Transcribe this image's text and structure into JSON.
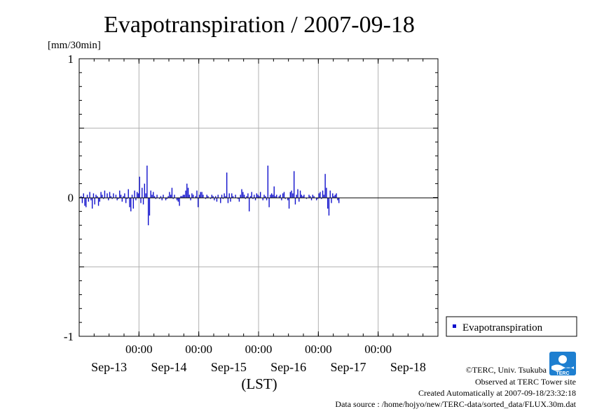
{
  "chart_data": {
    "type": "bar",
    "title": "Evapotranspiration / 2007-09-18",
    "ylabel": "[mm/30min]",
    "xlabel": "(LST)",
    "ylim": [
      -1,
      1
    ],
    "yticks": [
      1,
      0,
      -1
    ],
    "xlim": [
      0,
      6
    ],
    "time_tick_positions": [
      1,
      2,
      3,
      4,
      5
    ],
    "time_tick_label": "00:00",
    "date_tick_positions": [
      0.5,
      1.5,
      2.5,
      3.5,
      4.5,
      5.5
    ],
    "date_labels": [
      "Sep-13",
      "Sep-14",
      "Sep-15",
      "Sep-16",
      "Sep-17",
      "Sep-18"
    ],
    "grid": true,
    "legend_position": "right-bottom",
    "series": [
      {
        "name": "Evapotranspiration",
        "color": "#1010cc",
        "interval_days": 0.0208333,
        "values": [
          0.0,
          0.01,
          -0.04,
          0.03,
          -0.06,
          -0.07,
          0.02,
          -0.03,
          0.04,
          -0.02,
          -0.08,
          0.03,
          -0.05,
          0.02,
          0.01,
          -0.06,
          -0.03,
          0.04,
          0.02,
          -0.01,
          0.05,
          0.0,
          0.03,
          -0.02,
          0.04,
          0.01,
          -0.01,
          0.03,
          0.0,
          0.02,
          -0.02,
          -0.01,
          0.05,
          0.02,
          -0.03,
          0.01,
          0.03,
          -0.04,
          -0.01,
          0.06,
          -0.07,
          -0.1,
          0.02,
          -0.08,
          0.05,
          -0.02,
          0.04,
          0.03,
          0.15,
          -0.04,
          0.07,
          -0.05,
          0.1,
          0.03,
          0.23,
          -0.2,
          -0.13,
          0.05,
          0.02,
          0.04,
          0.01,
          -0.01,
          0.02,
          0.0,
          -0.01,
          0.01,
          -0.02,
          0.02,
          0.0,
          -0.02,
          -0.01,
          0.01,
          0.04,
          0.02,
          0.07,
          -0.01,
          0.02,
          0.0,
          -0.02,
          -0.03,
          -0.06,
          0.01,
          0.01,
          0.02,
          0.02,
          0.05,
          0.1,
          0.07,
          0.02,
          -0.02,
          0.03,
          0.02,
          0.0,
          0.01,
          0.05,
          -0.07,
          0.02,
          0.04,
          0.04,
          0.02,
          0.0,
          -0.01,
          0.02,
          0.01,
          0.0,
          -0.01,
          0.02,
          0.01,
          -0.02,
          0.01,
          -0.03,
          0.02,
          0.0,
          -0.04,
          0.02,
          -0.01,
          0.03,
          0.01,
          0.18,
          -0.04,
          0.03,
          -0.03,
          0.03,
          0.01,
          0.0,
          0.02,
          0.0,
          -0.01,
          -0.03,
          0.02,
          0.06,
          0.04,
          0.02,
          -0.01,
          0.01,
          0.03,
          -0.1,
          0.01,
          0.04,
          -0.01,
          0.02,
          -0.02,
          0.03,
          0.02,
          0.01,
          0.04,
          0.0,
          -0.02,
          0.02,
          0.01,
          -0.02,
          0.23,
          -0.07,
          0.02,
          0.03,
          0.02,
          0.08,
          0.01,
          0.02,
          0.0,
          0.01,
          0.02,
          -0.02,
          0.03,
          0.04,
          -0.01,
          0.0,
          -0.02,
          -0.08,
          0.04,
          0.05,
          0.03,
          0.19,
          -0.05,
          0.02,
          0.06,
          -0.03,
          0.05,
          0.02,
          0.01,
          0.02,
          0.0,
          -0.01,
          0.0,
          0.02,
          0.01,
          -0.02,
          0.02,
          0.01,
          0.0,
          -0.02,
          -0.01,
          0.03,
          0.04,
          -0.01,
          0.05,
          0.02,
          0.17,
          0.07,
          -0.08,
          -0.13,
          0.05,
          -0.04,
          0.03,
          0.01,
          0.02,
          0.03,
          -0.02,
          -0.04
        ]
      }
    ]
  },
  "credits": {
    "copyright": "©TERC, Univ. Tsukuba",
    "observed": "Observed at TERC Tower site",
    "created": "Created Automatically at 2007-09-18/23:32:18",
    "source": "Data source : /home/hojyo/new/TERC-data/sorted_data/FLUX.30m.dat",
    "logo_text": "TERC"
  }
}
